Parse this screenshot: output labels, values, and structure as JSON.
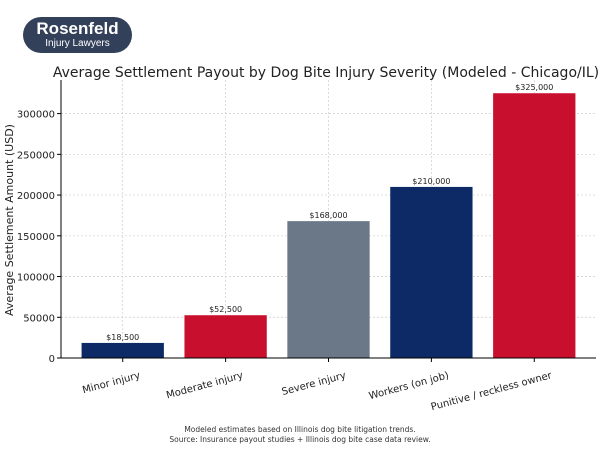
{
  "logo": {
    "name": "Rosenfeld",
    "tagline": "Injury Lawyers"
  },
  "chart_data": {
    "type": "bar",
    "title": "Average Settlement Payout by Dog Bite Injury Severity (Modeled - Chicago/IL)",
    "xlabel": "",
    "ylabel": "Average Settlement Amount (USD)",
    "categories": [
      "Minor injury",
      "Moderate injury",
      "Severe injury",
      "Workers (on job)",
      "Punitive / reckless owner"
    ],
    "values": [
      18500,
      52500,
      168000,
      210000,
      325000
    ],
    "data_labels": [
      "$18,500",
      "$52,500",
      "$168,000",
      "$210,000",
      "$325,000"
    ],
    "colors": [
      "#0d2a66",
      "#c8102e",
      "#6b7888",
      "#0d2a66",
      "#c8102e"
    ],
    "ylim": [
      0,
      341250
    ],
    "yticks": [
      0,
      50000,
      100000,
      150000,
      200000,
      250000,
      300000
    ],
    "grid": true,
    "legend": "none"
  },
  "footnote": {
    "line1": "Modeled estimates based on Illinois dog bite litigation trends.",
    "line2": "Source: Insurance payout studies + Illinois dog bite case data review."
  }
}
